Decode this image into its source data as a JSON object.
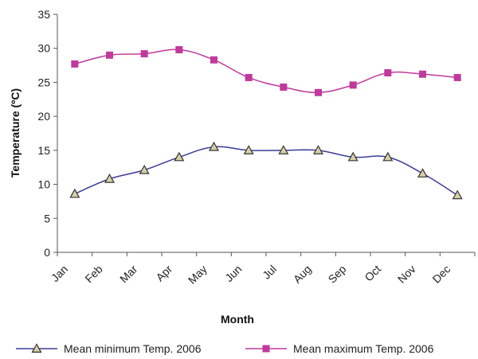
{
  "chart_data": {
    "type": "line",
    "title": "",
    "xlabel": "Month",
    "ylabel": "Temperature (ºC)",
    "ylim": [
      0,
      35
    ],
    "yticks": [
      0,
      5,
      10,
      15,
      20,
      25,
      30,
      35
    ],
    "categories": [
      "Jan",
      "Feb",
      "Mar",
      "Apr",
      "May",
      "Jun",
      "Jul",
      "Aug",
      "Sep",
      "Oct",
      "Nov",
      "Dec"
    ],
    "grid": false,
    "legend_position": "bottom",
    "series": [
      {
        "name": "Mean minimum Temp. 2006",
        "values": [
          8.6,
          10.8,
          12.1,
          14.0,
          15.5,
          15.0,
          15.0,
          15.0,
          14.0,
          14.0,
          11.6,
          8.4
        ],
        "color": "#3b3b98",
        "marker": "triangle",
        "marker_fill": "#d8d0a8",
        "marker_stroke": "#333333"
      },
      {
        "name": "Mean maximum Temp. 2006",
        "values": [
          27.7,
          29.0,
          29.2,
          29.8,
          28.3,
          25.7,
          24.3,
          23.5,
          24.6,
          26.4,
          26.2,
          25.7
        ],
        "color": "#c0399c",
        "marker": "square",
        "marker_fill": "#c0399c",
        "marker_stroke": "#c0399c"
      }
    ]
  }
}
